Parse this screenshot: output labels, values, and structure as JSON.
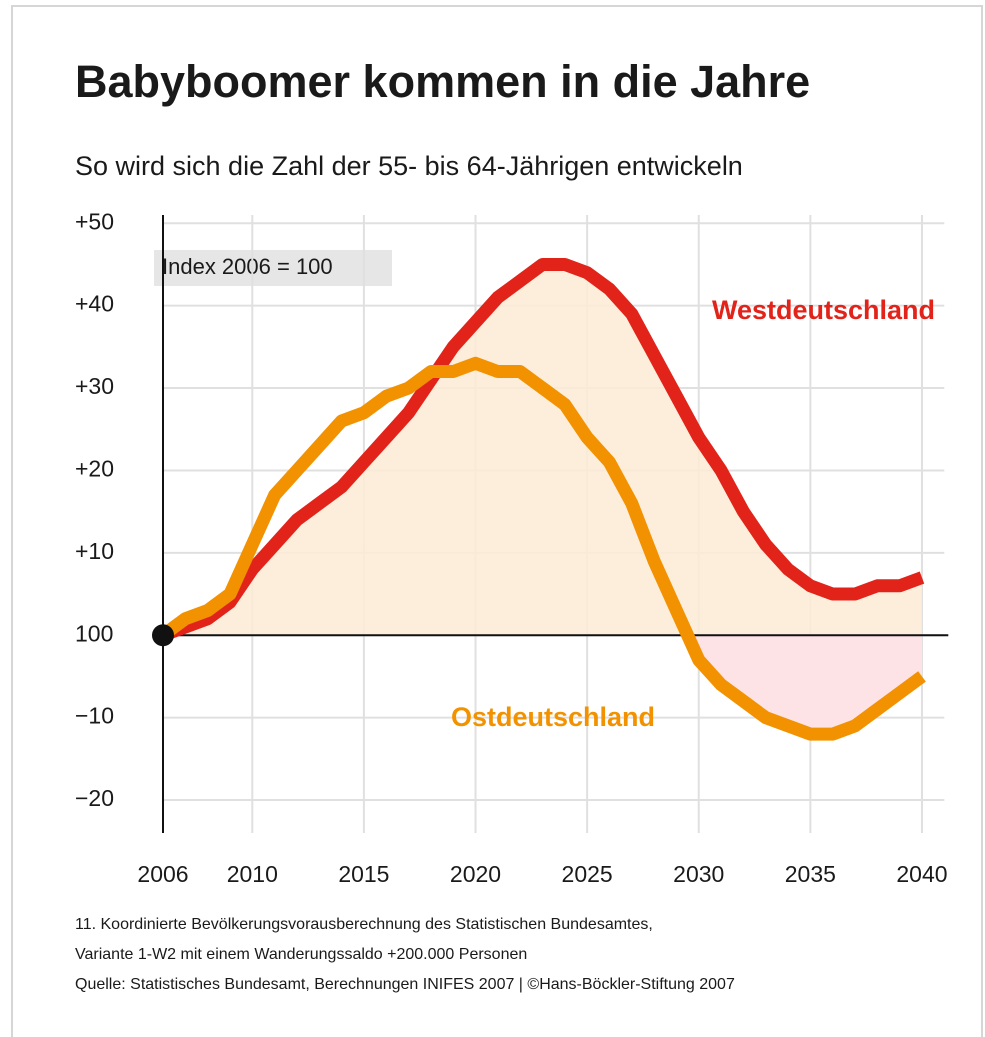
{
  "chart_data": {
    "type": "line",
    "title": "Babyboomer kommen in die Jahre",
    "subtitle": "So wird sich die Zahl der 55- bis 64-Jährigen entwickeln",
    "annotation": "Index 2006 = 100",
    "x": [
      2006,
      2007,
      2008,
      2009,
      2010,
      2011,
      2012,
      2013,
      2014,
      2015,
      2016,
      2017,
      2018,
      2019,
      2020,
      2021,
      2022,
      2023,
      2024,
      2025,
      2026,
      2027,
      2028,
      2029,
      2030,
      2031,
      2032,
      2033,
      2034,
      2035,
      2036,
      2037,
      2038,
      2039,
      2040
    ],
    "series": [
      {
        "name": "Westdeutschland",
        "color": "#e2231a",
        "values": [
          0,
          1,
          2,
          4,
          8,
          11,
          14,
          16,
          18,
          21,
          24,
          27,
          31,
          35,
          38,
          41,
          43,
          45,
          45,
          44,
          42,
          39,
          34,
          29,
          24,
          20,
          15,
          11,
          8,
          6,
          5,
          5,
          6,
          6,
          7
        ]
      },
      {
        "name": "Ostdeutschland",
        "color": "#f39200",
        "values": [
          0,
          2,
          3,
          5,
          11,
          17,
          20,
          23,
          26,
          27,
          29,
          30,
          32,
          32,
          33,
          32,
          32,
          30,
          28,
          24,
          21,
          16,
          9,
          3,
          -3,
          -6,
          -8,
          -10,
          -11,
          -12,
          -12,
          -11,
          -9,
          -7,
          -5
        ]
      }
    ],
    "xlim": [
      2006,
      2041
    ],
    "xticks": [
      2006,
      2010,
      2015,
      2020,
      2025,
      2030,
      2035,
      2040
    ],
    "ylim": [
      -24,
      51
    ],
    "yticks": [
      {
        "value": 50,
        "label": "+50"
      },
      {
        "value": 40,
        "label": "+40"
      },
      {
        "value": 30,
        "label": "+30"
      },
      {
        "value": 20,
        "label": "+20"
      },
      {
        "value": 10,
        "label": "+10"
      },
      {
        "value": 0,
        "label": "100"
      },
      {
        "value": -10,
        "label": "−10"
      },
      {
        "value": -20,
        "label": "−20"
      }
    ],
    "grid": true,
    "footnotes": [
      "11. Koordinierte Bevölkerungsvorausberechnung des Statistischen Bundesamtes,",
      "Variante 1-W2 mit einem Wanderungssaldo +200.000 Personen",
      "Quelle: Statistisches Bundesamt, Berechnungen INIFES 2007 | ©Hans-Böckler-Stiftung 2007"
    ]
  }
}
